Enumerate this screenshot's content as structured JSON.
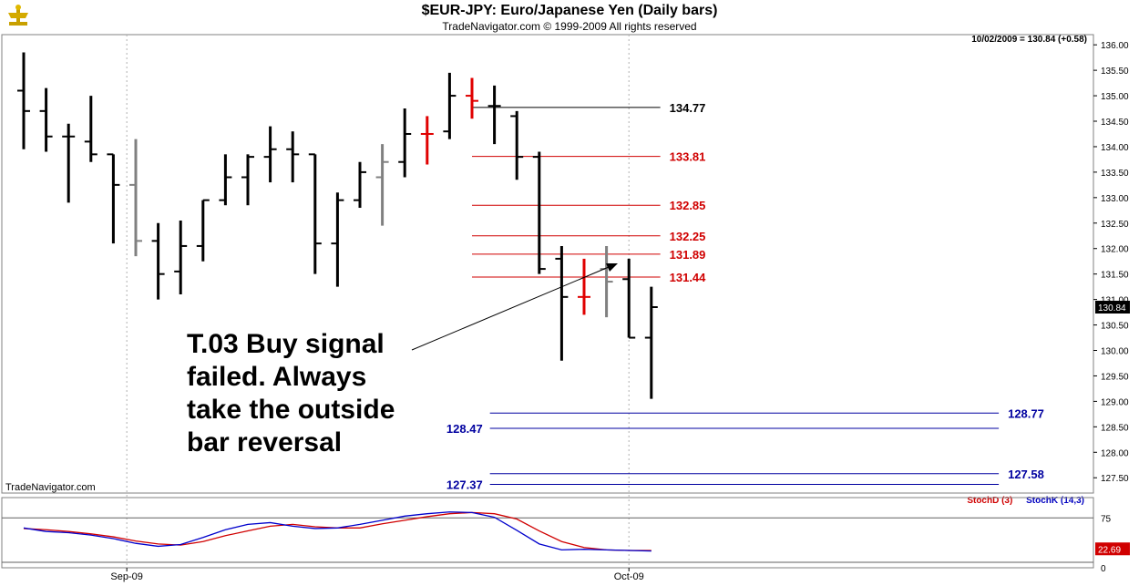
{
  "title": "$EUR-JPY:  Euro/Japanese Yen  (Daily bars)",
  "subtitle": "TradeNavigator.com © 1999-2009 All rights reserved",
  "watermark": "TradeNavigator.com",
  "last_price_note": "10/02/2009 = 130.84 (+0.58)",
  "annotation": "T.03 Buy signal failed. Always take the outside bar reversal",
  "colors": {
    "up_bar": "#000000",
    "signal_bar": "#e00000",
    "inside_bar": "#808080",
    "red_level": "#d00000",
    "blue_level": "#0000a0",
    "black_level": "#000000",
    "stoch_k": "#0000cc",
    "stoch_d": "#d00000"
  },
  "indicator": {
    "stoch_d_label": "StochD (3)",
    "stoch_k_label": "StochK (14,3)",
    "level_75": "75",
    "level_0": "0",
    "stoch_value": "22.69"
  },
  "chart_data": {
    "type": "ohlc",
    "ylim": [
      127.2,
      136.2
    ],
    "y_ticks": [
      "136.00",
      "135.50",
      "135.00",
      "134.50",
      "134.00",
      "133.50",
      "133.00",
      "132.50",
      "132.00",
      "131.50",
      "131.00",
      "130.50",
      "130.00",
      "129.50",
      "129.00",
      "128.50",
      "128.00",
      "127.50"
    ],
    "x_tick_labels": [
      "Sep-09",
      "Oct-09"
    ],
    "last_price_label": "130.84",
    "bars": [
      {
        "o": 135.1,
        "h": 135.85,
        "l": 133.95,
        "c": 134.7,
        "t": "n"
      },
      {
        "o": 134.7,
        "h": 135.15,
        "l": 133.9,
        "c": 134.2,
        "t": "n"
      },
      {
        "o": 134.2,
        "h": 134.45,
        "l": 132.9,
        "c": 134.2,
        "t": "n"
      },
      {
        "o": 134.1,
        "h": 135.0,
        "l": 133.7,
        "c": 133.85,
        "t": "n"
      },
      {
        "o": 133.85,
        "h": 133.85,
        "l": 132.1,
        "c": 133.25,
        "t": "n"
      },
      {
        "o": 133.25,
        "h": 134.15,
        "l": 131.85,
        "c": 132.15,
        "t": "g"
      },
      {
        "o": 132.15,
        "h": 132.5,
        "l": 131.0,
        "c": 131.5,
        "t": "n"
      },
      {
        "o": 131.55,
        "h": 132.55,
        "l": 131.1,
        "c": 132.05,
        "t": "n"
      },
      {
        "o": 132.05,
        "h": 132.95,
        "l": 131.75,
        "c": 132.95,
        "t": "n"
      },
      {
        "o": 132.95,
        "h": 133.85,
        "l": 132.85,
        "c": 133.4,
        "t": "n"
      },
      {
        "o": 133.4,
        "h": 133.85,
        "l": 132.85,
        "c": 133.8,
        "t": "n"
      },
      {
        "o": 133.8,
        "h": 134.4,
        "l": 133.3,
        "c": 133.95,
        "t": "n"
      },
      {
        "o": 133.95,
        "h": 134.3,
        "l": 133.3,
        "c": 133.85,
        "t": "n"
      },
      {
        "o": 133.85,
        "h": 133.85,
        "l": 131.5,
        "c": 132.1,
        "t": "n"
      },
      {
        "o": 132.1,
        "h": 133.1,
        "l": 131.25,
        "c": 132.95,
        "t": "n"
      },
      {
        "o": 132.95,
        "h": 133.7,
        "l": 132.8,
        "c": 133.5,
        "t": "n"
      },
      {
        "o": 133.4,
        "h": 134.05,
        "l": 132.45,
        "c": 133.7,
        "t": "g"
      },
      {
        "o": 133.7,
        "h": 134.75,
        "l": 133.4,
        "c": 134.25,
        "t": "n"
      },
      {
        "o": 134.25,
        "h": 134.6,
        "l": 133.65,
        "c": 134.25,
        "t": "r"
      },
      {
        "o": 134.3,
        "h": 135.45,
        "l": 134.15,
        "c": 135.0,
        "t": "n"
      },
      {
        "o": 135.0,
        "h": 135.35,
        "l": 134.55,
        "c": 134.9,
        "t": "r"
      },
      {
        "o": 134.8,
        "h": 135.2,
        "l": 134.05,
        "c": 134.8,
        "t": "n"
      },
      {
        "o": 134.6,
        "h": 134.7,
        "l": 133.35,
        "c": 133.8,
        "t": "n"
      },
      {
        "o": 133.8,
        "h": 133.9,
        "l": 131.5,
        "c": 131.6,
        "t": "n"
      },
      {
        "o": 131.8,
        "h": 132.05,
        "l": 129.8,
        "c": 131.05,
        "t": "n"
      },
      {
        "o": 131.05,
        "h": 131.8,
        "l": 130.7,
        "c": 131.05,
        "t": "r"
      },
      {
        "o": 131.6,
        "h": 132.05,
        "l": 130.65,
        "c": 131.35,
        "t": "g"
      },
      {
        "o": 131.4,
        "h": 131.8,
        "l": 130.25,
        "c": 130.25,
        "t": "n"
      },
      {
        "o": 130.25,
        "h": 131.25,
        "l": 129.05,
        "c": 130.85,
        "t": "n"
      }
    ],
    "levels": [
      {
        "value": 134.77,
        "label": "134.77",
        "color": "black_level",
        "x0": 20,
        "x1": 28.4,
        "label_side": "right"
      },
      {
        "value": 133.81,
        "label": "133.81",
        "color": "red_level",
        "x0": 20,
        "x1": 28.4,
        "label_side": "right"
      },
      {
        "value": 132.85,
        "label": "132.85",
        "color": "red_level",
        "x0": 20,
        "x1": 28.4,
        "label_side": "right"
      },
      {
        "value": 132.25,
        "label": "132.25",
        "color": "red_level",
        "x0": 20,
        "x1": 28.4,
        "label_side": "right"
      },
      {
        "value": 131.89,
        "label": "131.89",
        "color": "red_level",
        "x0": 20,
        "x1": 28.4,
        "label_side": "right"
      },
      {
        "value": 131.44,
        "label": "131.44",
        "color": "red_level",
        "x0": 20,
        "x1": 28.4,
        "label_side": "right"
      },
      {
        "value": 128.77,
        "label": "128.77",
        "color": "blue_level",
        "x0": 20.8,
        "x1": 43.5,
        "label_side": "right"
      },
      {
        "value": 128.47,
        "label": "128.47",
        "color": "blue_level",
        "x0": 20.8,
        "x1": 43.5,
        "label_side": "left"
      },
      {
        "value": 127.58,
        "label": "127.58",
        "color": "blue_level",
        "x0": 20.8,
        "x1": 43.5,
        "label_side": "right"
      },
      {
        "value": 127.37,
        "label": "127.37",
        "color": "blue_level",
        "x0": 20.8,
        "x1": 43.5,
        "label_side": "left"
      }
    ],
    "stoch_k": [
      58,
      52,
      50,
      46,
      40,
      32,
      27,
      30,
      42,
      55,
      64,
      67,
      61,
      57,
      58,
      64,
      71,
      78,
      82,
      85,
      84,
      76,
      54,
      31,
      21,
      22,
      21,
      20,
      19
    ],
    "stoch_d": [
      57,
      55,
      52,
      48,
      43,
      36,
      31,
      29,
      35,
      45,
      53,
      61,
      64,
      60,
      58,
      58,
      65,
      71,
      77,
      82,
      84,
      82,
      73,
      53,
      35,
      25,
      21,
      20,
      20
    ]
  }
}
